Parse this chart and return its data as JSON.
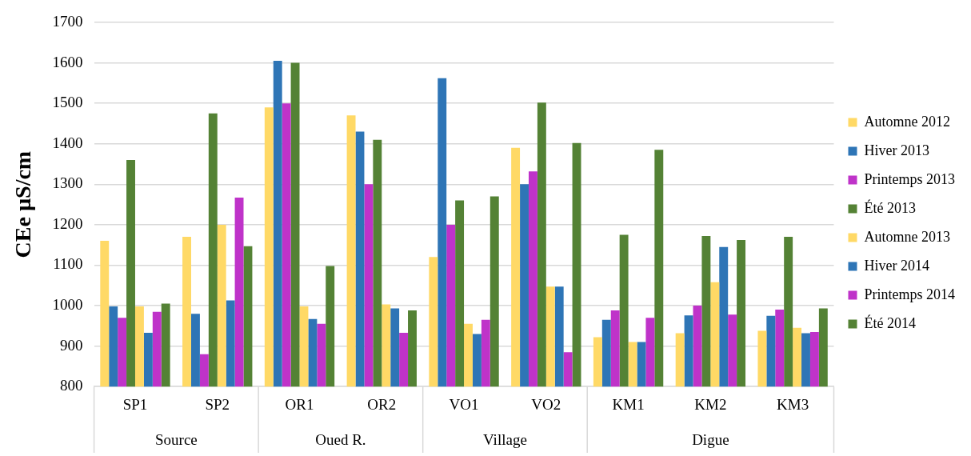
{
  "chart_data": {
    "type": "bar",
    "ylabel": "CEe µS/cm",
    "categories": [
      "SP1",
      "SP2",
      "OR1",
      "OR2",
      "VO1",
      "VO2",
      "KM1",
      "KM2",
      "KM3"
    ],
    "series": [
      {
        "name": "Automne 2012",
        "color": "#ffd966",
        "values": [
          1160,
          1170,
          1490,
          1470,
          1120,
          1390,
          922,
          932,
          938
        ]
      },
      {
        "name": "Hiver 2013",
        "color": "#2e75b6",
        "values": [
          998,
          980,
          1605,
          1430,
          1562,
          1300,
          965,
          976,
          975
        ]
      },
      {
        "name": "Printemps 2013",
        "color": "#bf33c9",
        "values": [
          970,
          880,
          1500,
          1300,
          1200,
          1332,
          988,
          1000,
          990
        ]
      },
      {
        "name": "Été 2013",
        "color": "#548235",
        "values": [
          1360,
          1475,
          1600,
          1410,
          1260,
          1502,
          1175,
          1172,
          1170
        ]
      },
      {
        "name": "Automne 2013",
        "color": "#ffd966",
        "values": [
          998,
          1200,
          998,
          1003,
          955,
          1047,
          910,
          1058,
          945
        ]
      },
      {
        "name": "Hiver 2014",
        "color": "#2e75b6",
        "values": [
          933,
          1013,
          967,
          993,
          930,
          1047,
          910,
          1145,
          932
        ]
      },
      {
        "name": "Printemps 2014",
        "color": "#bf33c9",
        "values": [
          985,
          1267,
          955,
          933,
          965,
          885,
          970,
          978,
          935
        ]
      },
      {
        "name": "Été 2014",
        "color": "#548235",
        "values": [
          1005,
          1147,
          1098,
          988,
          1270,
          1402,
          1385,
          1162,
          993
        ]
      }
    ],
    "annotations": [
      {
        "text": "Source",
        "x": "SP1"
      },
      {
        "text": "Oued R.",
        "x": "OR1"
      },
      {
        "text": "Village",
        "x": "VO1"
      },
      {
        "text": "Digue",
        "x": "KM2"
      }
    ],
    "ylim": [
      800,
      1700
    ],
    "yticks": [
      800,
      900,
      1000,
      1100,
      1200,
      1300,
      1400,
      1500,
      1600,
      1700
    ],
    "grid": "y",
    "legend": "right"
  }
}
